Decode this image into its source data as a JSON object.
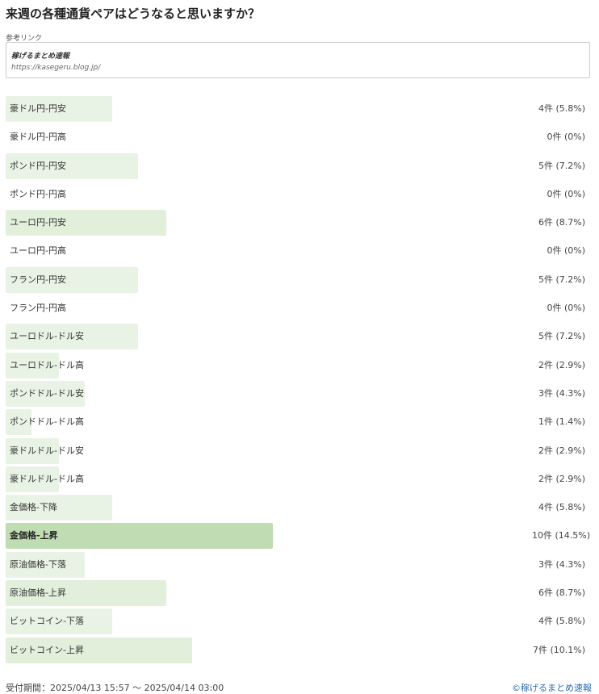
{
  "title": "来週の各種通貨ペアはどうなると思いますか？",
  "reference": {
    "label": "参考リンク",
    "name": "稼げるまとめ速報",
    "url": "https://kasegeru.blog.jp/"
  },
  "colors": {
    "bar": "#e9f3e5",
    "bar_top": "#bfdcb3",
    "link": "#2a6db3"
  },
  "results": [
    {
      "label": "豪ドル円-円安",
      "count": "4件 (5.8%)",
      "percent": 5.8
    },
    {
      "label": "豪ドル円-円高",
      "count": "0件 (0%)",
      "percent": 0
    },
    {
      "label": "ポンド円-円安",
      "count": "5件 (7.2%)",
      "percent": 7.2
    },
    {
      "label": "ポンド円-円高",
      "count": "0件 (0%)",
      "percent": 0
    },
    {
      "label": "ユーロ円-円安",
      "count": "6件 (8.7%)",
      "percent": 8.7
    },
    {
      "label": "ユーロ円-円高",
      "count": "0件 (0%)",
      "percent": 0
    },
    {
      "label": "フラン円-円安",
      "count": "5件 (7.2%)",
      "percent": 7.2
    },
    {
      "label": "フラン円-円高",
      "count": "0件 (0%)",
      "percent": 0
    },
    {
      "label": "ユーロドル-ドル安",
      "count": "5件 (7.2%)",
      "percent": 7.2
    },
    {
      "label": "ユーロドル-ドル高",
      "count": "2件 (2.9%)",
      "percent": 2.9
    },
    {
      "label": "ポンドドル-ドル安",
      "count": "3件 (4.3%)",
      "percent": 4.3
    },
    {
      "label": "ポンドドル-ドル高",
      "count": "1件 (1.4%)",
      "percent": 1.4
    },
    {
      "label": "豪ドルドル-ドル安",
      "count": "2件 (2.9%)",
      "percent": 2.9
    },
    {
      "label": "豪ドルドル-ドル高",
      "count": "2件 (2.9%)",
      "percent": 2.9
    },
    {
      "label": "金価格-下降",
      "count": "4件 (5.8%)",
      "percent": 5.8
    },
    {
      "label": "金価格-上昇",
      "count": "10件 (14.5%)",
      "percent": 14.5
    },
    {
      "label": "原油価格-下落",
      "count": "3件 (4.3%)",
      "percent": 4.3
    },
    {
      "label": "原油価格-上昇",
      "count": "6件 (8.7%)",
      "percent": 8.7
    },
    {
      "label": "ビットコイン-下落",
      "count": "4件 (5.8%)",
      "percent": 5.8
    },
    {
      "label": "ビットコイン-上昇",
      "count": "7件 (10.1%)",
      "percent": 10.1
    }
  ],
  "footer": {
    "period": "受付期間：2025/04/13 15:57 ～ 2025/04/14 03:00",
    "credit": "©稼げるまとめ速報"
  }
}
